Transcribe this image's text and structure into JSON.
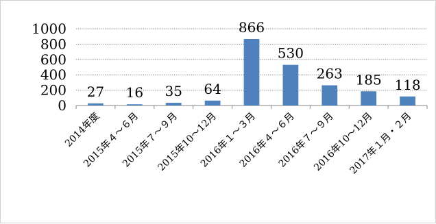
{
  "chart_data": {
    "type": "bar",
    "categories": [
      "2014年度",
      "2015年４～６月",
      "2015年７～９月",
      "2015年10～12月",
      "2016年１～３月",
      "2016年４～６月",
      "2016年７～９月",
      "2016年10～12月",
      "2017年１月・２月"
    ],
    "series": [
      {
        "values": [
          27,
          16,
          35,
          64,
          866,
          530,
          263,
          185,
          118
        ]
      }
    ],
    "ylim": [
      0,
      1000
    ],
    "yticks": [
      0,
      200,
      400,
      600,
      800,
      1000
    ],
    "grid": true,
    "legend": "none",
    "colors": {
      "bar": "#4f81bd",
      "grid": "#7f7f7f",
      "axis": "#868686"
    }
  }
}
